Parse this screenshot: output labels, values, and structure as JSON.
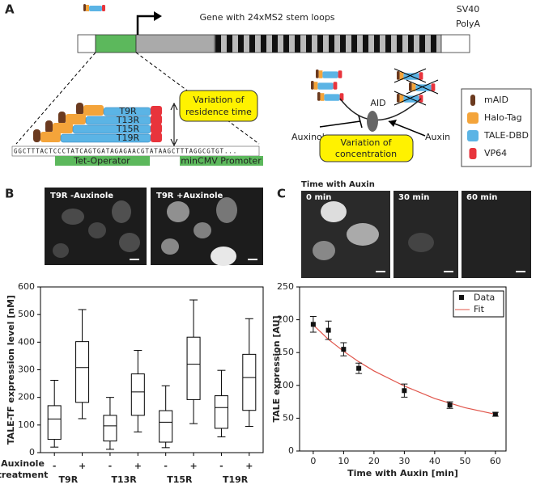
{
  "panel_a": {
    "label": "A",
    "gene_label": "Gene with 24xMS2 stem loops",
    "polya": [
      "SV40",
      "PolyA"
    ],
    "constructs": [
      "T9R",
      "T13R",
      "T15R",
      "T19R"
    ],
    "sequence": "GGCTTTACTCCCTATCAGTGATAGAGAACGTATAAGCTTTAGGCGTGT...",
    "tet_operator": "Tet-Operator",
    "promoter": "minCMV Promoter",
    "residence": [
      "Variation of",
      "residence time"
    ],
    "aid": "AID",
    "auxinole": "Auxinole",
    "auxin": "Auxin",
    "concentration": [
      "Variation of",
      "concentration"
    ],
    "legend": [
      "mAID",
      "Halo-Tag",
      "TALE-DBD",
      "VP64"
    ]
  },
  "panel_b": {
    "label": "B",
    "images": [
      "T9R -Auxinole",
      "T9R +Auxinole"
    ]
  },
  "panel_c": {
    "label": "C",
    "image_title": "Time with Auxin",
    "images": [
      "0 min",
      "30 min",
      "60 min"
    ]
  },
  "chart_data": [
    {
      "type": "box",
      "ylabel": "TALE-TF expression level [nM]",
      "ylim": [
        0,
        600
      ],
      "yticks": [
        0,
        100,
        200,
        300,
        400,
        500,
        600
      ],
      "groups": [
        "T9R",
        "T13R",
        "T15R",
        "T19R"
      ],
      "treatments": [
        "-",
        "+",
        "-",
        "+",
        "-",
        "+",
        "-",
        "+"
      ],
      "row_label": [
        "Auxinole",
        "treatment"
      ],
      "boxes": [
        {
          "min": 20,
          "q1": 48,
          "median": 122,
          "q3": 170,
          "max": 262
        },
        {
          "min": 123,
          "q1": 182,
          "median": 308,
          "q3": 402,
          "max": 518
        },
        {
          "min": 12,
          "q1": 42,
          "median": 97,
          "q3": 135,
          "max": 200
        },
        {
          "min": 75,
          "q1": 135,
          "median": 220,
          "q3": 285,
          "max": 370
        },
        {
          "min": 18,
          "q1": 38,
          "median": 110,
          "q3": 152,
          "max": 242
        },
        {
          "min": 105,
          "q1": 192,
          "median": 320,
          "q3": 418,
          "max": 553
        },
        {
          "min": 57,
          "q1": 88,
          "median": 163,
          "q3": 206,
          "max": 298
        },
        {
          "min": 95,
          "q1": 153,
          "median": 272,
          "q3": 356,
          "max": 485
        }
      ]
    },
    {
      "type": "scatter",
      "xlabel": "Time with Auxin [min]",
      "ylabel": "TALE expression [AU]",
      "xlim": [
        -4.5,
        63.5
      ],
      "ylim": [
        0,
        250
      ],
      "xticks": [
        0,
        10,
        20,
        30,
        40,
        50,
        60
      ],
      "yticks": [
        0,
        50,
        100,
        150,
        200,
        250
      ],
      "series": [
        {
          "name": "Data",
          "color": "#111111",
          "x": [
            0,
            5,
            10,
            15,
            30,
            45,
            60
          ],
          "values": [
            193,
            184,
            155,
            126,
            92,
            70,
            56
          ],
          "errors": [
            12,
            14,
            10,
            8,
            10,
            5,
            3
          ]
        },
        {
          "name": "Fit",
          "color": "#e0544a",
          "x": [
            0,
            5,
            10,
            15,
            20,
            30,
            40,
            50,
            60
          ],
          "values": [
            192,
            170,
            152,
            136,
            122,
            99,
            80,
            66,
            56
          ]
        }
      ]
    }
  ]
}
